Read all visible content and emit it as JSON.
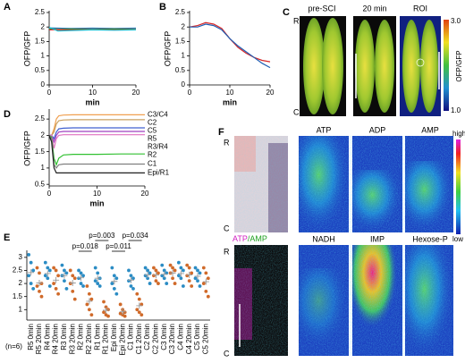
{
  "chart_data": [
    {
      "type": "line",
      "panel": "A",
      "xlabel": "min",
      "ylabel": "OFP/GFP",
      "xlim": [
        0,
        20
      ],
      "ylim": [
        0,
        2.5
      ],
      "xticks": [
        0,
        10,
        20
      ],
      "yticks": [
        0,
        0.5,
        1,
        1.5,
        2,
        2.5
      ],
      "x": [
        0,
        2,
        5,
        10,
        15,
        20
      ],
      "series": [
        {
          "color": "#1f77b4",
          "values": [
            1.97,
            1.96,
            1.95,
            1.96,
            1.95,
            1.96
          ]
        },
        {
          "color": "#2ca02c",
          "values": [
            1.93,
            1.92,
            1.93,
            1.92,
            1.93,
            1.92
          ]
        },
        {
          "color": "#d62728",
          "values": [
            1.9,
            1.91,
            1.9,
            1.91,
            1.9,
            1.91
          ]
        },
        {
          "color": "#17becf",
          "values": [
            1.99,
            1.86,
            1.88,
            1.9,
            1.89,
            1.9
          ]
        }
      ]
    },
    {
      "type": "line",
      "panel": "B",
      "xlabel": "min",
      "ylabel": "OFP/GFP",
      "xlim": [
        0,
        20
      ],
      "ylim": [
        0,
        2.5
      ],
      "xticks": [
        0,
        10,
        20
      ],
      "yticks": [
        0,
        0.5,
        1,
        1.5,
        2,
        2.5
      ],
      "x": [
        0,
        2,
        4,
        6,
        8,
        10,
        12,
        14,
        16,
        18,
        20
      ],
      "series": [
        {
          "color": "#d62728",
          "values": [
            2.0,
            2.05,
            2.15,
            2.1,
            1.95,
            1.6,
            1.3,
            1.1,
            0.95,
            0.85,
            0.8
          ]
        },
        {
          "color": "#1f5fb4",
          "values": [
            2.0,
            2.0,
            2.1,
            2.05,
            1.9,
            1.6,
            1.35,
            1.15,
            0.95,
            0.75,
            0.6
          ]
        }
      ]
    },
    {
      "type": "line",
      "panel": "D",
      "xlabel": "min",
      "ylabel": "OFP/GFP",
      "xlim": [
        0,
        20
      ],
      "ylim": [
        0.45,
        2.75
      ],
      "xticks": [
        0,
        10,
        20
      ],
      "yticks": [
        0.5,
        1,
        1.5,
        2,
        2.5
      ],
      "x": [
        0,
        0.5,
        1,
        1.5,
        2,
        3,
        5,
        10,
        15,
        20
      ],
      "series": [
        {
          "name": "C3/C4",
          "color": "#f0a050",
          "values": [
            2.0,
            2.0,
            2.2,
            2.5,
            2.6,
            2.62,
            2.63,
            2.63,
            2.63,
            2.63
          ]
        },
        {
          "name": "C2",
          "color": "#c8a060",
          "values": [
            2.0,
            2.0,
            2.1,
            2.35,
            2.45,
            2.47,
            2.48,
            2.48,
            2.48,
            2.48
          ]
        },
        {
          "name": "C5",
          "color": "#4060d0",
          "values": [
            2.0,
            2.0,
            1.9,
            2.1,
            2.2,
            2.22,
            2.23,
            2.23,
            2.23,
            2.23
          ]
        },
        {
          "name": "R5",
          "color": "#a040c0",
          "values": [
            2.0,
            2.0,
            1.8,
            2.0,
            2.1,
            2.12,
            2.12,
            2.12,
            2.12,
            2.12
          ]
        },
        {
          "name": "R3/R4",
          "color": "#e070c0",
          "values": [
            2.0,
            2.0,
            1.6,
            1.9,
            2.0,
            2.02,
            2.02,
            2.02,
            2.02,
            2.02
          ]
        },
        {
          "name": "R2",
          "color": "#30c030",
          "values": [
            2.0,
            1.95,
            1.3,
            1.1,
            1.3,
            1.4,
            1.42,
            1.42,
            1.43,
            1.43
          ]
        },
        {
          "name": "C1",
          "color": "#808080",
          "values": [
            2.0,
            1.9,
            1.1,
            1.0,
            1.1,
            1.12,
            1.12,
            1.12,
            1.12,
            1.12
          ]
        },
        {
          "name": "Epi/R1",
          "color": "#202020",
          "values": [
            2.0,
            1.8,
            1.0,
            0.85,
            0.85,
            0.85,
            0.85,
            0.85,
            0.85,
            0.85
          ]
        }
      ]
    },
    {
      "type": "dot",
      "panel": "E",
      "note": "(n=6)",
      "ylim": [
        0.6,
        3.2
      ],
      "yticks": [
        1,
        1.5,
        2,
        2.5,
        3
      ],
      "colors": [
        "#2b8cc4",
        "#d06a2a"
      ],
      "mean_color": "#999999",
      "categories": [
        "R5 0min",
        "R5 20min",
        "R4 0min",
        "R4 20min",
        "R3 0min",
        "R3 20min",
        "R2 0min",
        "R2 20min",
        "R1 0min",
        "R1 20min",
        "Epi 0min",
        "Epi 20min",
        "C1 0min",
        "C1 20min",
        "C2 0min",
        "C2 20min",
        "C3 0min",
        "C3 20min",
        "C4 0min",
        "C4 20min",
        "C5 0min",
        "C5 20min"
      ],
      "values": [
        [
          3.1,
          2.8,
          2.5,
          2.3,
          2.0,
          1.8
        ],
        [
          2.6,
          2.4,
          2.0,
          1.9,
          1.7,
          1.5
        ],
        [
          2.8,
          2.6,
          2.5,
          2.3,
          2.2,
          1.9
        ],
        [
          2.6,
          2.5,
          2.3,
          2.0,
          1.8,
          1.6
        ],
        [
          2.7,
          2.5,
          2.4,
          2.3,
          2.1,
          1.8
        ],
        [
          2.5,
          2.3,
          2.2,
          2.0,
          1.7,
          1.4
        ],
        [
          2.5,
          2.4,
          2.3,
          2.2,
          2.0,
          1.9
        ],
        [
          1.9,
          1.6,
          1.4,
          1.2,
          1.0,
          0.8
        ],
        [
          2.6,
          2.4,
          2.2,
          2.1,
          2.0,
          1.9
        ],
        [
          1.3,
          1.1,
          1.0,
          0.9,
          0.8,
          0.75
        ],
        [
          2.6,
          2.3,
          2.2,
          2.0,
          1.8,
          1.6
        ],
        [
          1.2,
          1.0,
          0.9,
          0.85,
          0.8,
          0.75
        ],
        [
          2.5,
          2.3,
          2.2,
          2.1,
          1.9,
          1.8
        ],
        [
          1.6,
          1.4,
          1.2,
          1.0,
          0.9,
          0.8
        ],
        [
          2.6,
          2.5,
          2.4,
          2.3,
          2.2,
          2.0
        ],
        [
          2.6,
          2.5,
          2.4,
          2.3,
          2.1,
          2.0
        ],
        [
          2.7,
          2.5,
          2.4,
          2.3,
          2.2,
          2.0
        ],
        [
          2.7,
          2.6,
          2.5,
          2.4,
          2.2,
          2.0
        ],
        [
          2.8,
          2.6,
          2.5,
          2.3,
          2.2,
          1.9
        ],
        [
          2.7,
          2.6,
          2.4,
          2.3,
          2.1,
          1.9
        ],
        [
          2.6,
          2.5,
          2.4,
          2.2,
          2.1,
          1.9
        ],
        [
          2.6,
          2.4,
          2.2,
          2.0,
          1.7,
          1.5
        ]
      ],
      "means": [
        2.42,
        2.02,
        2.38,
        2.13,
        2.3,
        2.02,
        2.22,
        1.32,
        2.2,
        0.98,
        2.08,
        0.92,
        2.13,
        1.15,
        2.33,
        2.32,
        2.35,
        2.4,
        2.38,
        2.33,
        2.28,
        2.07
      ],
      "annotations": [
        "p=0.018",
        "p=0.003",
        "p=0.011",
        "p=0.034"
      ]
    }
  ],
  "images": {
    "C": {
      "panel": "C",
      "titles": [
        "pre-SCI",
        "20 min",
        "ROI"
      ],
      "top": "R",
      "bottom": "C",
      "colorbar": {
        "max": "3.0",
        "min": "1.0",
        "label": "OFP/GFP"
      }
    },
    "F": {
      "panel": "F",
      "titles": [
        "ATP",
        "ADP",
        "AMP",
        "NADH",
        "IMP",
        "Hexose-P"
      ],
      "overlay": [
        "ATP",
        "/AMP"
      ],
      "top": [
        "R",
        "R"
      ],
      "bottom": [
        "C",
        "C"
      ],
      "colorbar": {
        "max": "high",
        "min": "low"
      }
    }
  }
}
